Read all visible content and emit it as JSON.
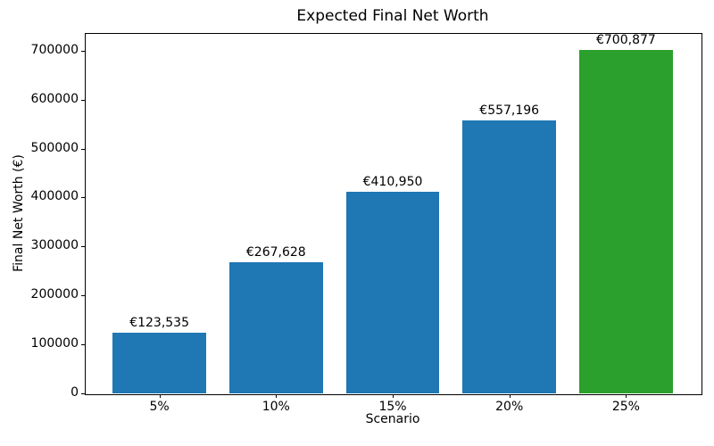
{
  "chart_data": {
    "type": "bar",
    "title": "Expected Final Net Worth",
    "xlabel": "Scenario",
    "ylabel": "Final Net Worth (€)",
    "categories": [
      "5%",
      "10%",
      "15%",
      "20%",
      "25%"
    ],
    "values": [
      123535,
      267628,
      410950,
      557196,
      700877
    ],
    "bar_labels": [
      "€123,535",
      "€267,628",
      "€410,950",
      "€557,196",
      "€700,877"
    ],
    "bar_colors": [
      "#1f77b4",
      "#1f77b4",
      "#1f77b4",
      "#1f77b4",
      "#2ca02c"
    ],
    "y_ticks": [
      0,
      100000,
      200000,
      300000,
      400000,
      500000,
      600000,
      700000
    ],
    "y_tick_labels": [
      "0",
      "100000",
      "200000",
      "300000",
      "400000",
      "500000",
      "600000",
      "700000"
    ],
    "ylim": [
      0,
      735921
    ],
    "xlim": [
      -0.64,
      4.64
    ],
    "bar_width": 0.8,
    "grid": false,
    "legend_position": "none",
    "spine_color": "#000000",
    "background_color": "#ffffff"
  }
}
